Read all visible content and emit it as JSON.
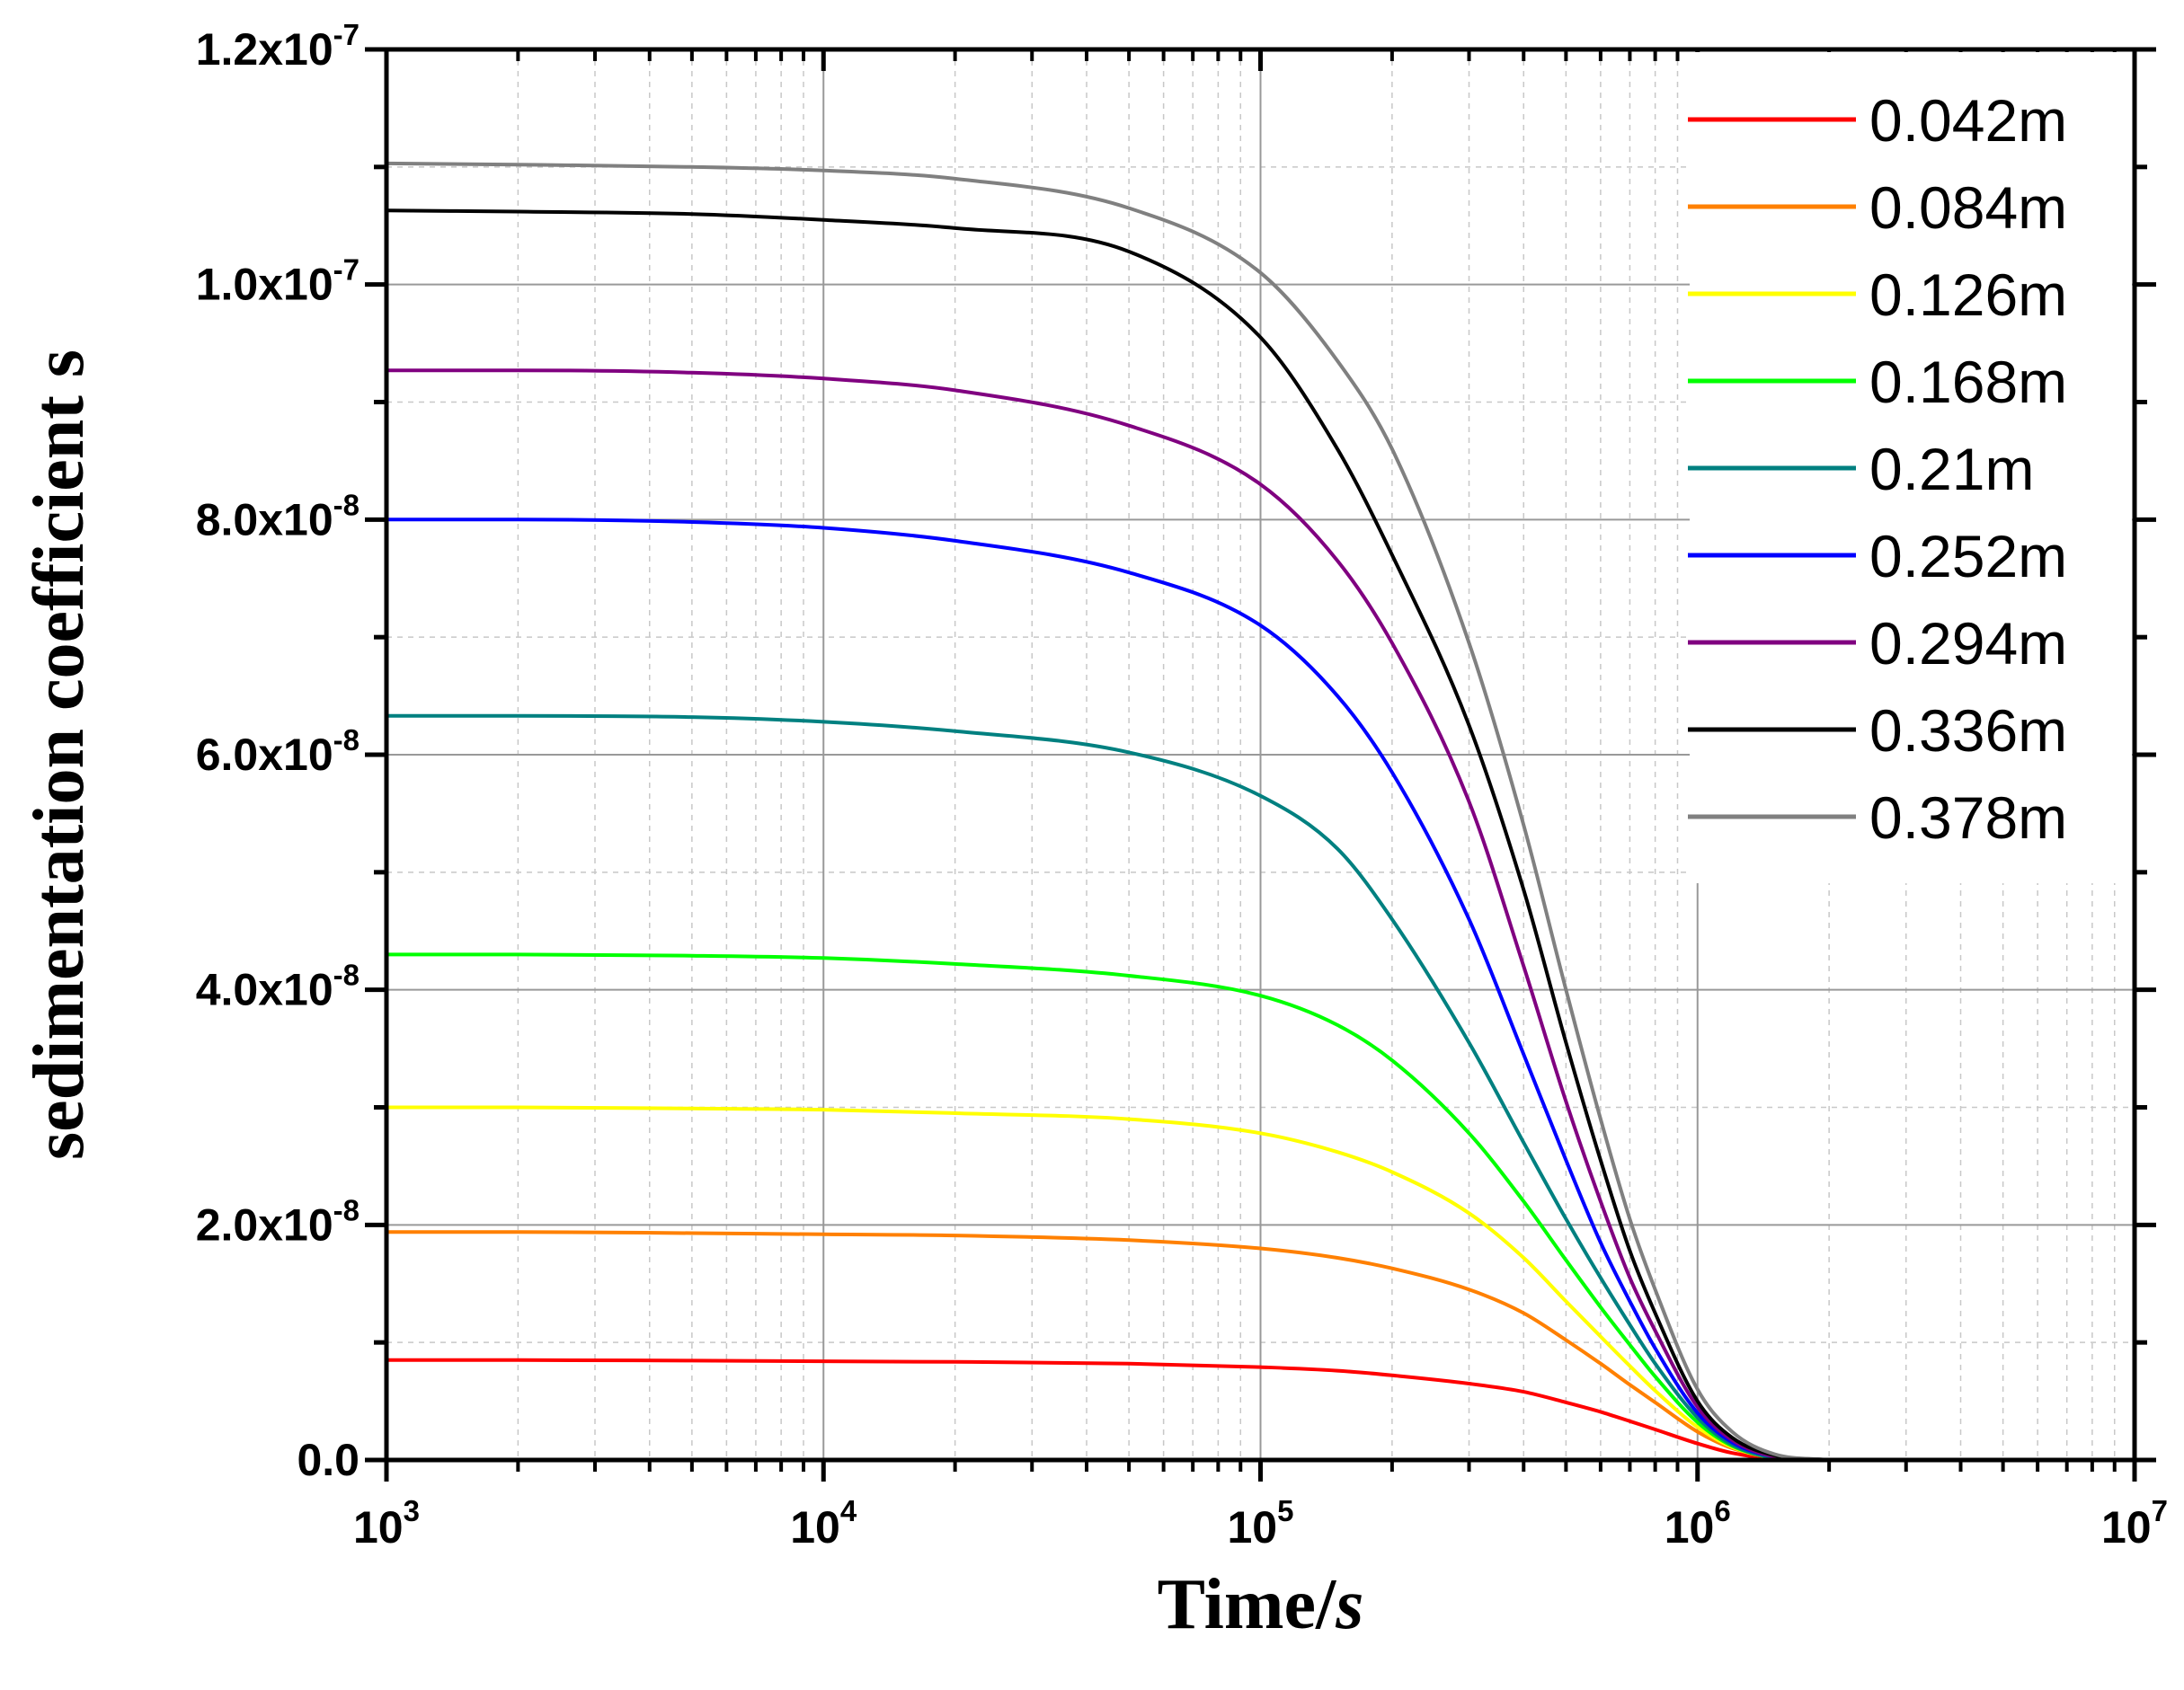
{
  "chart_data": {
    "type": "line",
    "xscale": "log",
    "xlabel": "Time/",
    "xlabel_italic": "s",
    "ylabel": "sedimentation coefficient s",
    "xlim": [
      1000,
      10000000
    ],
    "ylim": [
      0,
      1.2e-07
    ],
    "x_ticks": [
      {
        "value": 1000,
        "base": "10",
        "exp": "3"
      },
      {
        "value": 10000,
        "base": "10",
        "exp": "4"
      },
      {
        "value": 100000,
        "base": "10",
        "exp": "5"
      },
      {
        "value": 1000000,
        "base": "10",
        "exp": "6"
      },
      {
        "value": 10000000,
        "base": "10",
        "exp": "7"
      }
    ],
    "y_ticks": [
      {
        "value": 0,
        "mant": "0.0",
        "exp": ""
      },
      {
        "value": 2e-08,
        "mant": "2.0x10",
        "exp": "-8"
      },
      {
        "value": 4e-08,
        "mant": "4.0x10",
        "exp": "-8"
      },
      {
        "value": 6e-08,
        "mant": "6.0x10",
        "exp": "-8"
      },
      {
        "value": 8e-08,
        "mant": "8.0x10",
        "exp": "-8"
      },
      {
        "value": 1e-07,
        "mant": "1.0x10",
        "exp": "-7"
      },
      {
        "value": 1.2e-07,
        "mant": "1.2x10",
        "exp": "-7"
      }
    ],
    "grid": true,
    "legend_position": "top-right",
    "sample_times": [
      1000,
      2000,
      5000,
      10000,
      20000,
      50000,
      100000,
      150000,
      200000,
      300000,
      400000,
      500000,
      600000,
      700000,
      800000,
      1000000,
      1200000,
      1500000,
      2000000
    ],
    "series": [
      {
        "name": "0.042m",
        "color": "#ff0000",
        "values": [
          8.5e-09,
          8.5e-09,
          8.45e-09,
          8.4e-09,
          8.35e-09,
          8.2e-09,
          7.9e-09,
          7.6e-09,
          7.2e-09,
          6.5e-09,
          5.8e-09,
          4.9e-09,
          4.1e-09,
          3.3e-09,
          2.6e-09,
          1.4e-09,
          6e-10,
          1e-10,
          0
        ]
      },
      {
        "name": "0.084m",
        "color": "#ff8000",
        "values": [
          1.94e-08,
          1.94e-08,
          1.93e-08,
          1.92e-08,
          1.91e-08,
          1.87e-08,
          1.8e-08,
          1.72e-08,
          1.63e-08,
          1.45e-08,
          1.25e-08,
          1.02e-08,
          8.2e-09,
          6.4e-09,
          4.9e-09,
          2.4e-09,
          1e-09,
          2e-10,
          0
        ]
      },
      {
        "name": "0.126m",
        "color": "#ffff00",
        "values": [
          3e-08,
          3e-08,
          2.99e-08,
          2.98e-08,
          2.95e-08,
          2.9e-08,
          2.78e-08,
          2.62e-08,
          2.45e-08,
          2.1e-08,
          1.72e-08,
          1.35e-08,
          1.05e-08,
          8e-09,
          5.9e-09,
          2.8e-09,
          1.1e-09,
          2e-10,
          0
        ]
      },
      {
        "name": "0.168m",
        "color": "#00ff00",
        "values": [
          4.3e-08,
          4.3e-08,
          4.29e-08,
          4.27e-08,
          4.22e-08,
          4.12e-08,
          3.95e-08,
          3.7e-08,
          3.4e-08,
          2.78e-08,
          2.2e-08,
          1.7e-08,
          1.3e-08,
          9.8e-09,
          7.1e-09,
          3.2e-09,
          1.2e-09,
          2e-10,
          0
        ]
      },
      {
        "name": "0.21m",
        "color": "#008080",
        "values": [
          6.33e-08,
          6.33e-08,
          6.32e-08,
          6.28e-08,
          6.2e-08,
          6.02e-08,
          5.65e-08,
          5.2e-08,
          4.6e-08,
          3.55e-08,
          2.7e-08,
          2.05e-08,
          1.55e-08,
          1.15e-08,
          8.2e-09,
          3.6e-09,
          1.3e-09,
          2e-10,
          0
        ]
      },
      {
        "name": "0.252m",
        "color": "#0000ff",
        "values": [
          8e-08,
          8e-08,
          7.98e-08,
          7.93e-08,
          7.82e-08,
          7.55e-08,
          7.1e-08,
          6.5e-08,
          5.85e-08,
          4.6e-08,
          3.45e-08,
          2.55e-08,
          1.85e-08,
          1.35e-08,
          9.5e-09,
          4e-09,
          1.5e-09,
          3e-10,
          0
        ]
      },
      {
        "name": "0.294m",
        "color": "#800080",
        "values": [
          9.27e-08,
          9.27e-08,
          9.25e-08,
          9.2e-08,
          9.1e-08,
          8.8e-08,
          8.3e-08,
          7.65e-08,
          6.95e-08,
          5.6e-08,
          4.2e-08,
          3.05e-08,
          2.2e-08,
          1.55e-08,
          1.1e-08,
          4.5e-09,
          1.7e-09,
          3e-10,
          0
        ]
      },
      {
        "name": "0.336m",
        "color": "#000000",
        "values": [
          1.063e-07,
          1.062e-07,
          1.06e-07,
          1.055e-07,
          1.048e-07,
          1.028e-07,
          9.55e-08,
          8.6e-08,
          7.7e-08,
          6.25e-08,
          4.85e-08,
          3.55e-08,
          2.55e-08,
          1.78e-08,
          1.25e-08,
          5e-09,
          1.9e-09,
          4e-10,
          0
        ]
      },
      {
        "name": "0.378m",
        "color": "#808080",
        "values": [
          1.103e-07,
          1.102e-07,
          1.1e-07,
          1.097e-07,
          1.09e-07,
          1.065e-07,
          1.01e-07,
          9.35e-08,
          8.6e-08,
          6.95e-08,
          5.4e-08,
          4e-08,
          2.9e-08,
          2.05e-08,
          1.45e-08,
          6e-09,
          2.4e-09,
          5e-10,
          0
        ]
      }
    ]
  }
}
